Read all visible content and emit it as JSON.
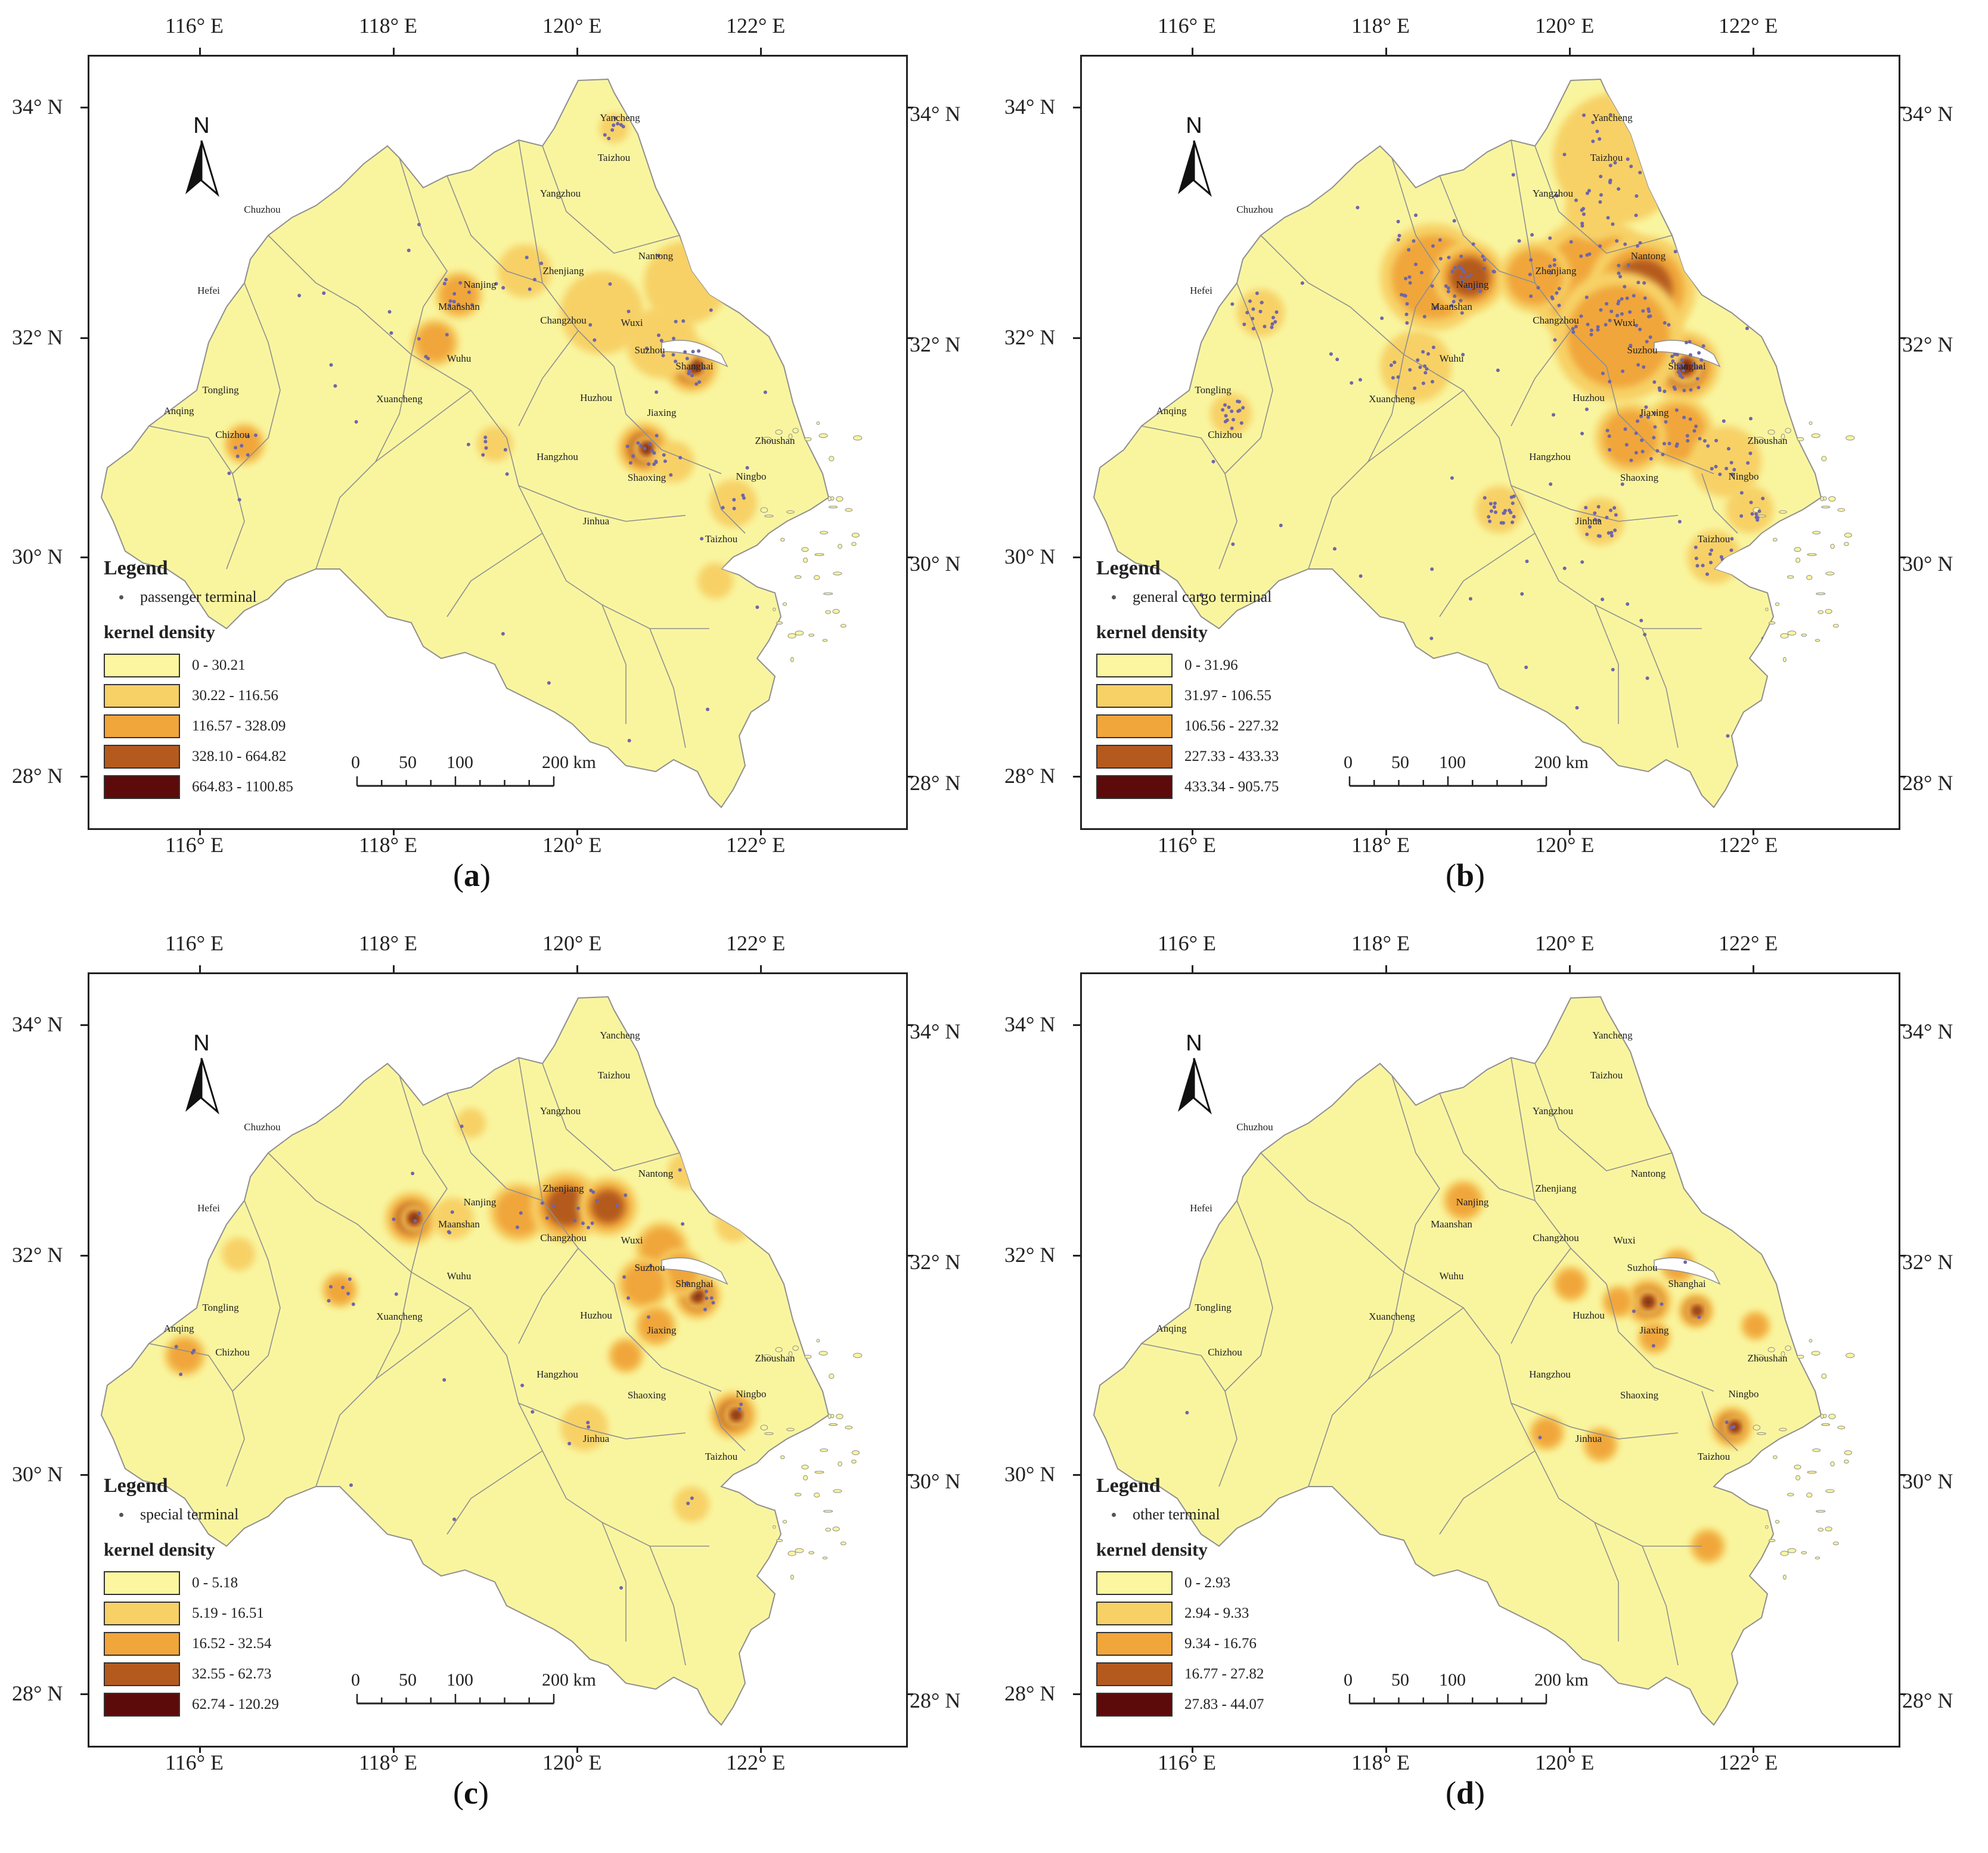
{
  "axes": {
    "lon_ticks": [
      "116° E",
      "118° E",
      "120° E",
      "122° E"
    ],
    "lat_ticks": [
      "28° N",
      "30° N",
      "32° N",
      "34° N"
    ]
  },
  "colors": {
    "land": "#f9f59f",
    "boundary": "#8f8f8f",
    "terminal_point": "#6f66a8",
    "class_1": "#fbf69f",
    "class_2": "#f7d166",
    "class_3": "#f0a63a",
    "class_4": "#b45a1f",
    "class_5": "#5d0a0a"
  },
  "scale": {
    "labels": [
      "0",
      "50",
      "100",
      "200 km"
    ]
  },
  "north_label": "N",
  "cities": [
    "Yancheng",
    "Taizhou",
    "Chuzhou",
    "Yangzhou",
    "Nantong",
    "Hefei",
    "Nanjing",
    "Zhenjiang",
    "Maanshan",
    "Changzhou",
    "Wuxi",
    "Suzhou",
    "Wuhu",
    "Shanghai",
    "Tongling",
    "Xuancheng",
    "Huzhou",
    "Jiaxing",
    "Anqing",
    "Chizhou",
    "Hangzhou",
    "Shaoxing",
    "Ningbo",
    "Zhoushan",
    "Jinhua",
    "Taizhou"
  ],
  "panels": [
    {
      "caption_letter": "a",
      "legend_title": "Legend",
      "point_label": "passenger terminal",
      "density_title": "kernel density",
      "classes": [
        "0 - 30.21",
        "30.22 - 116.56",
        "116.57 - 328.09",
        "328.10 - 664.82",
        "664.83 - 1100.85"
      ]
    },
    {
      "caption_letter": "b",
      "legend_title": "Legend",
      "point_label": "general cargo terminal",
      "density_title": "kernel density",
      "classes": [
        "0 - 31.96",
        "31.97 - 106.55",
        "106.56 - 227.32",
        "227.33 - 433.33",
        "433.34 - 905.75"
      ]
    },
    {
      "caption_letter": "c",
      "legend_title": "Legend",
      "point_label": "special terminal",
      "density_title": "kernel density",
      "classes": [
        "0 - 5.18",
        "5.19 - 16.51",
        "16.52 - 32.54",
        "32.55 - 62.73",
        "62.74 - 120.29"
      ]
    },
    {
      "caption_letter": "d",
      "legend_title": "Legend",
      "point_label": "other terminal",
      "density_title": "kernel density",
      "classes": [
        "0 - 2.93",
        "2.94 - 9.33",
        "9.34 - 16.76",
        "16.77 - 27.82",
        "27.83 - 44.07"
      ]
    }
  ]
}
